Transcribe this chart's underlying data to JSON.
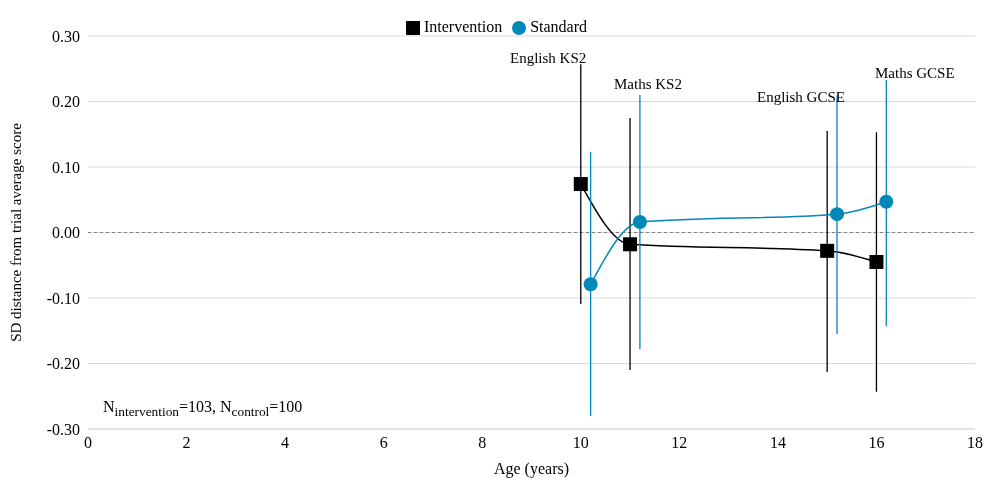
{
  "chart_data": {
    "type": "line",
    "xlabel": "Age (years)",
    "ylabel": "SD distance from trial average score",
    "xlim": [
      0,
      18
    ],
    "xticks": [
      0,
      2,
      4,
      6,
      8,
      10,
      12,
      14,
      16,
      18
    ],
    "ylim": [
      -0.3,
      0.3
    ],
    "yticks": [
      {
        "value": -0.3,
        "label": "-0.30"
      },
      {
        "value": -0.2,
        "label": "-0.20"
      },
      {
        "value": -0.1,
        "label": "-0.10"
      },
      {
        "value": 0,
        "label": "0.00"
      },
      {
        "value": 0.1,
        "label": "0.10"
      },
      {
        "value": 0.2,
        "label": "0.20"
      },
      {
        "value": 0.3,
        "label": "0.30"
      }
    ],
    "grid": "y",
    "legend": "top",
    "series": [
      {
        "name": "Intervention",
        "color": "#000000",
        "marker": "square",
        "x": [
          10,
          11,
          15,
          16
        ],
        "values": [
          0.074,
          -0.018,
          -0.028,
          -0.045
        ],
        "errors": [
          [
            -0.109,
            0.257
          ],
          [
            -0.21,
            0.175
          ],
          [
            -0.213,
            0.155
          ],
          [
            -0.243,
            0.153
          ]
        ]
      },
      {
        "name": "Standard",
        "color": "#0088b8",
        "marker": "circle",
        "x": [
          10.2,
          11.2,
          15.2,
          16.2
        ],
        "values": [
          -0.079,
          0.016,
          0.028,
          0.047
        ],
        "errors": [
          [
            -0.28,
            0.123
          ],
          [
            -0.178,
            0.21
          ],
          [
            -0.155,
            0.21
          ],
          [
            -0.143,
            0.233
          ]
        ]
      }
    ],
    "ref_lines": [
      {
        "axis": "y",
        "value": 0,
        "color": "#808080",
        "line_style": "dashed"
      }
    ],
    "annotations": [
      "English KS2",
      "Maths KS2",
      "English GCSE",
      "Maths GCSE",
      "N$_{intervention}$=103, N$_{control}$=100"
    ]
  }
}
